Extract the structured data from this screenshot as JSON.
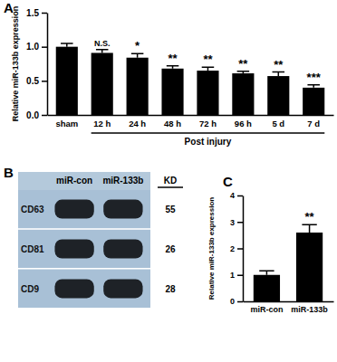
{
  "chart_data": [
    {
      "type": "bar",
      "panel": "A",
      "y_label": "Relative miR-133b expression",
      "categories": [
        "sham",
        "12 h",
        "24 h",
        "48 h",
        "72 h",
        "96 h",
        "5 d",
        "7 d"
      ],
      "values": [
        1.0,
        0.91,
        0.84,
        0.68,
        0.65,
        0.61,
        0.57,
        0.4
      ],
      "errors": [
        0.05,
        0.05,
        0.06,
        0.04,
        0.05,
        0.03,
        0.06,
        0.04
      ],
      "annotations": [
        null,
        "N.S.",
        "*",
        "**",
        "**",
        "**",
        "**",
        "***"
      ],
      "group_label": "Post injury",
      "color": "#000000",
      "ylim": [
        0,
        1.5
      ],
      "yticks": [
        {
          "value": 0,
          "label": "0.0"
        },
        0.5,
        {
          "value": 1,
          "label": "1.0"
        },
        1.5
      ]
    },
    {
      "type": "blot",
      "panel": "B",
      "categories": [
        "miR-con",
        "miR-133b"
      ],
      "kd_header": "KD",
      "rows": [
        {
          "name": "CD63",
          "kd": 55
        },
        {
          "name": "CD81",
          "kd": 26
        },
        {
          "name": "CD9",
          "kd": 28
        }
      ]
    },
    {
      "type": "bar",
      "panel": "C",
      "y_label": "Relative miR-133b expression",
      "categories": [
        "miR-con",
        "miR-133b"
      ],
      "values": [
        1.0,
        2.6
      ],
      "errors": [
        0.15,
        0.3
      ],
      "annotations": [
        null,
        "**"
      ],
      "color": "#000000",
      "ylim": [
        0,
        4
      ],
      "yticks": [
        0,
        1,
        2,
        3,
        4
      ]
    }
  ]
}
